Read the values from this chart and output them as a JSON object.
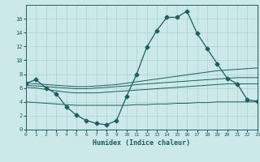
{
  "title": "",
  "xlabel": "Humidex (Indice chaleur)",
  "bg_color": "#cce8e8",
  "line_color": "#1a6060",
  "x_main": [
    0,
    1,
    2,
    3,
    4,
    5,
    6,
    7,
    8,
    9,
    10,
    11,
    12,
    13,
    14,
    15,
    16,
    17,
    18,
    19,
    20,
    21,
    22,
    23
  ],
  "y_main": [
    6.7,
    7.2,
    6.0,
    5.2,
    3.3,
    2.1,
    1.3,
    0.9,
    0.7,
    1.3,
    4.8,
    8.0,
    11.9,
    14.3,
    16.2,
    16.2,
    17.1,
    13.9,
    11.7,
    9.5,
    7.4,
    6.6,
    4.3,
    4.1
  ],
  "y_line1": [
    6.7,
    6.6,
    6.5,
    6.4,
    6.3,
    6.2,
    6.2,
    6.3,
    6.4,
    6.5,
    6.7,
    6.9,
    7.1,
    7.3,
    7.5,
    7.7,
    7.9,
    8.1,
    8.3,
    8.5,
    8.6,
    8.7,
    8.8,
    8.9
  ],
  "y_line2": [
    6.4,
    6.3,
    6.2,
    6.1,
    6.0,
    5.9,
    5.9,
    6.0,
    6.1,
    6.2,
    6.3,
    6.5,
    6.6,
    6.7,
    6.8,
    6.9,
    7.0,
    7.1,
    7.2,
    7.3,
    7.4,
    7.5,
    7.5,
    7.5
  ],
  "y_line3": [
    6.1,
    6.0,
    5.8,
    5.6,
    5.4,
    5.3,
    5.3,
    5.3,
    5.4,
    5.5,
    5.6,
    5.7,
    5.8,
    5.9,
    6.0,
    6.1,
    6.2,
    6.3,
    6.4,
    6.5,
    6.6,
    6.6,
    6.6,
    6.6
  ],
  "y_line4": [
    4.0,
    3.9,
    3.8,
    3.7,
    3.6,
    3.5,
    3.5,
    3.5,
    3.5,
    3.5,
    3.5,
    3.6,
    3.6,
    3.7,
    3.7,
    3.8,
    3.8,
    3.9,
    3.9,
    4.0,
    4.0,
    4.0,
    4.0,
    4.0
  ],
  "xlim": [
    0,
    23
  ],
  "ylim": [
    0,
    18
  ],
  "yticks": [
    0,
    2,
    4,
    6,
    8,
    10,
    12,
    14,
    16
  ],
  "xticks": [
    0,
    1,
    2,
    3,
    4,
    5,
    6,
    7,
    8,
    9,
    10,
    11,
    12,
    13,
    14,
    15,
    16,
    17,
    18,
    19,
    20,
    21,
    22,
    23
  ],
  "grid_color": "#a8d4d4",
  "marker": "D",
  "markersize": 2.5,
  "lw_main": 0.9,
  "lw_ref": 0.7
}
